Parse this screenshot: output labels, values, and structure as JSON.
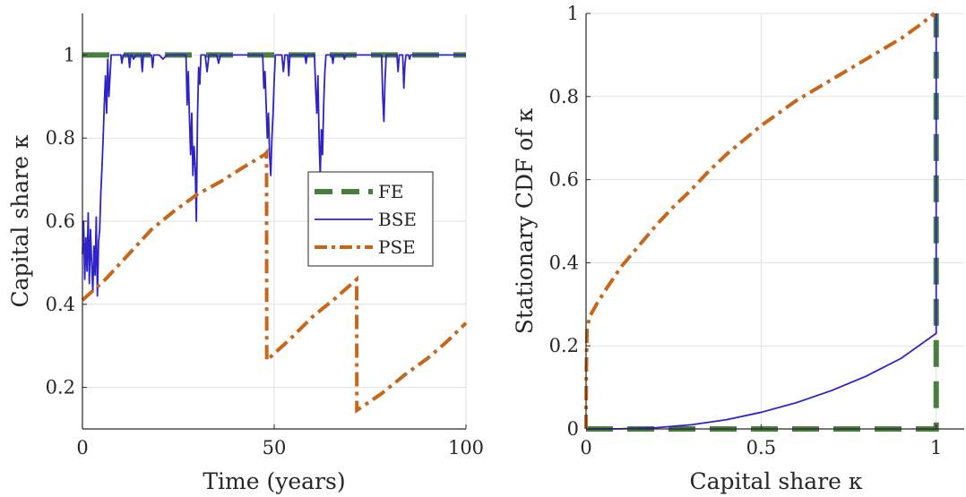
{
  "chart_data": [
    {
      "type": "line",
      "xlabel": "Time (years)",
      "ylabel": "Capital share κ",
      "xlim": [
        0,
        100
      ],
      "ylim": [
        0.1,
        1.1
      ],
      "xticks": [
        "0",
        "50",
        "100"
      ],
      "yticks": [
        "0.2",
        "0.4",
        "0.6",
        "0.8",
        "1"
      ],
      "grid": true,
      "legend": {
        "placement": "center-right",
        "entries": [
          "FE",
          "BSE",
          "PSE"
        ]
      },
      "series": [
        {
          "name": "FE",
          "style": "dashed",
          "color": "#4a7d40",
          "points": [
            [
              0,
              1
            ],
            [
              100,
              1
            ]
          ]
        },
        {
          "name": "BSE",
          "style": "solid",
          "color": "#2d23c8",
          "points": [
            [
              0,
              0.52
            ],
            [
              0.3,
              0.6
            ],
            [
              0.6,
              0.46
            ],
            [
              0.9,
              0.56
            ],
            [
              1.2,
              0.48
            ],
            [
              1.5,
              0.62
            ],
            [
              1.8,
              0.45
            ],
            [
              2.1,
              0.58
            ],
            [
              2.4,
              0.5
            ],
            [
              2.7,
              0.43
            ],
            [
              3.0,
              0.54
            ],
            [
              3.3,
              0.47
            ],
            [
              3.6,
              0.61
            ],
            [
              3.9,
              0.42
            ],
            [
              4.2,
              0.55
            ],
            [
              4.5,
              0.58
            ],
            [
              4.8,
              0.67
            ],
            [
              5.1,
              0.73
            ],
            [
              5.4,
              0.8
            ],
            [
              5.7,
              0.88
            ],
            [
              6.0,
              0.95
            ],
            [
              6.3,
              0.86
            ],
            [
              6.6,
              0.99
            ],
            [
              6.9,
              0.9
            ],
            [
              7.2,
              0.95
            ],
            [
              7.5,
              1.0
            ],
            [
              10,
              1.0
            ],
            [
              10.3,
              0.98
            ],
            [
              10.6,
              1.0
            ],
            [
              12,
              1.0
            ],
            [
              12.3,
              0.97
            ],
            [
              12.6,
              1.0
            ],
            [
              13,
              1.0
            ],
            [
              13.3,
              0.99
            ],
            [
              14,
              1.0
            ],
            [
              15.3,
              1.0
            ],
            [
              15.6,
              0.96
            ],
            [
              15.9,
              1.0
            ],
            [
              18,
              1.0
            ],
            [
              18.3,
              0.97
            ],
            [
              18.6,
              1.0
            ],
            [
              20,
              1.0
            ],
            [
              21,
              0.99
            ],
            [
              22,
              1.0
            ],
            [
              27,
              1.0
            ],
            [
              27.3,
              0.88
            ],
            [
              27.6,
              0.96
            ],
            [
              27.9,
              0.85
            ],
            [
              28.2,
              0.76
            ],
            [
              28.5,
              0.86
            ],
            [
              28.8,
              0.71
            ],
            [
              29.1,
              0.78
            ],
            [
              29.4,
              0.73
            ],
            [
              29.7,
              0.6
            ],
            [
              30.0,
              0.85
            ],
            [
              30.3,
              0.97
            ],
            [
              30.6,
              0.93
            ],
            [
              30.9,
              1.0
            ],
            [
              32,
              1.0
            ],
            [
              32.5,
              0.96
            ],
            [
              33,
              1.0
            ],
            [
              35,
              1.0
            ],
            [
              35.5,
              0.98
            ],
            [
              36,
              1.0
            ],
            [
              47,
              1.0
            ],
            [
              47.3,
              0.92
            ],
            [
              47.6,
              0.96
            ],
            [
              47.9,
              0.88
            ],
            [
              48.2,
              0.8
            ],
            [
              48.5,
              0.86
            ],
            [
              48.8,
              0.76
            ],
            [
              49.1,
              0.71
            ],
            [
              49.4,
              0.8
            ],
            [
              49.7,
              0.86
            ],
            [
              50.0,
              0.94
            ],
            [
              50.3,
              1.0
            ],
            [
              52,
              1.0
            ],
            [
              52.4,
              0.96
            ],
            [
              52.8,
              1.0
            ],
            [
              53.5,
              1.0
            ],
            [
              53.8,
              0.95
            ],
            [
              54.1,
              1.0
            ],
            [
              58,
              1.0
            ],
            [
              58.3,
              0.98
            ],
            [
              58.6,
              1.0
            ],
            [
              60.5,
              1.0
            ],
            [
              60.8,
              0.92
            ],
            [
              61.1,
              0.86
            ],
            [
              61.4,
              0.95
            ],
            [
              61.7,
              0.8
            ],
            [
              62.0,
              0.71
            ],
            [
              62.3,
              0.82
            ],
            [
              62.6,
              0.76
            ],
            [
              62.9,
              0.88
            ],
            [
              63.2,
              0.96
            ],
            [
              63.5,
              1.0
            ],
            [
              65,
              1.0
            ],
            [
              65.3,
              0.98
            ],
            [
              65.6,
              1.0
            ],
            [
              68,
              1.0
            ],
            [
              68.3,
              0.99
            ],
            [
              68.6,
              1.0
            ],
            [
              78,
              1.0
            ],
            [
              78.3,
              0.9
            ],
            [
              78.6,
              0.84
            ],
            [
              78.9,
              0.94
            ],
            [
              79.2,
              1.0
            ],
            [
              82,
              1.0
            ],
            [
              82.3,
              0.96
            ],
            [
              82.6,
              1.0
            ],
            [
              83.5,
              1.0
            ],
            [
              83.8,
              0.92
            ],
            [
              84.1,
              0.98
            ],
            [
              84.4,
              1.0
            ],
            [
              85,
              1.0
            ],
            [
              85.3,
              0.99
            ],
            [
              85.6,
              1.0
            ],
            [
              100,
              1.0
            ]
          ]
        },
        {
          "name": "PSE",
          "style": "dashdot",
          "color": "#c8661a",
          "points": [
            [
              0,
              0.41
            ],
            [
              6,
              0.46
            ],
            [
              12,
              0.52
            ],
            [
              18,
              0.58
            ],
            [
              24,
              0.625
            ],
            [
              30,
              0.665
            ],
            [
              36,
              0.695
            ],
            [
              42,
              0.73
            ],
            [
              47.5,
              0.76
            ],
            [
              48,
              0.765
            ],
            [
              48.05,
              0.265
            ],
            [
              54,
              0.315
            ],
            [
              60,
              0.37
            ],
            [
              66,
              0.415
            ],
            [
              71.5,
              0.46
            ],
            [
              71.55,
              0.145
            ],
            [
              78,
              0.185
            ],
            [
              84,
              0.23
            ],
            [
              90,
              0.27
            ],
            [
              95,
              0.31
            ],
            [
              100,
              0.355
            ]
          ]
        }
      ]
    },
    {
      "type": "line",
      "xlabel": "Capital share κ",
      "ylabel": "Stationary CDF of κ",
      "xlim": [
        0,
        1.08
      ],
      "ylim": [
        0,
        1
      ],
      "xticks": [
        "0",
        "0.5",
        "1"
      ],
      "yticks": [
        "0",
        "0.2",
        "0.4",
        "0.6",
        "0.8",
        "1"
      ],
      "grid": true,
      "series": [
        {
          "name": "FE",
          "style": "dashed",
          "color": "#4a7d40",
          "points": [
            [
              0,
              0
            ],
            [
              1,
              0
            ],
            [
              1,
              1
            ]
          ]
        },
        {
          "name": "BSE",
          "style": "solid",
          "color": "#2d23c8",
          "points": [
            [
              0,
              0
            ],
            [
              0.1,
              0.0004
            ],
            [
              0.2,
              0.003
            ],
            [
              0.3,
              0.01
            ],
            [
              0.4,
              0.022
            ],
            [
              0.5,
              0.04
            ],
            [
              0.6,
              0.063
            ],
            [
              0.7,
              0.092
            ],
            [
              0.8,
              0.127
            ],
            [
              0.9,
              0.17
            ],
            [
              1.0,
              0.23
            ],
            [
              1.0,
              1.0
            ]
          ]
        },
        {
          "name": "PSE",
          "style": "dashdot",
          "color": "#c8661a",
          "points": [
            [
              0,
              0
            ],
            [
              0.001,
              0.15
            ],
            [
              0.003,
              0.24
            ],
            [
              0.01,
              0.27
            ],
            [
              0.03,
              0.3
            ],
            [
              0.06,
              0.34
            ],
            [
              0.1,
              0.39
            ],
            [
              0.15,
              0.44
            ],
            [
              0.2,
              0.49
            ],
            [
              0.25,
              0.535
            ],
            [
              0.3,
              0.575
            ],
            [
              0.35,
              0.62
            ],
            [
              0.4,
              0.66
            ],
            [
              0.45,
              0.695
            ],
            [
              0.5,
              0.73
            ],
            [
              0.55,
              0.76
            ],
            [
              0.6,
              0.79
            ],
            [
              0.65,
              0.815
            ],
            [
              0.7,
              0.84
            ],
            [
              0.75,
              0.865
            ],
            [
              0.8,
              0.89
            ],
            [
              0.85,
              0.915
            ],
            [
              0.9,
              0.94
            ],
            [
              0.95,
              0.97
            ],
            [
              0.98,
              0.99
            ],
            [
              0.995,
              1.0
            ]
          ]
        }
      ]
    }
  ]
}
